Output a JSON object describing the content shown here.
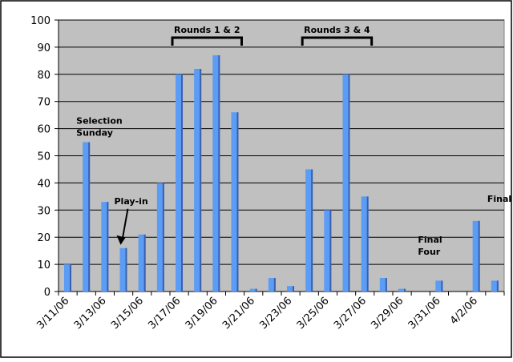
{
  "chart_data": {
    "type": "bar",
    "title": "",
    "xlabel": "",
    "ylabel": "",
    "ylim": [
      0,
      100
    ],
    "yticks": [
      0,
      10,
      20,
      30,
      40,
      50,
      60,
      70,
      80,
      90,
      100
    ],
    "grid": true,
    "legend": "none",
    "colors": {
      "bar": "#5b9cf5",
      "bar_shadow": "#3a5fb0",
      "plot_background": "#c0c0c0",
      "gridline": "#000000"
    },
    "categories": [
      "3/11/06",
      "3/12/06",
      "3/13/06",
      "3/14/06",
      "3/15/06",
      "3/16/06",
      "3/17/06",
      "3/18/06",
      "3/19/06",
      "3/20/06",
      "3/21/06",
      "3/22/06",
      "3/23/06",
      "3/24/06",
      "3/25/06",
      "3/26/06",
      "3/27/06",
      "3/28/06",
      "3/29/06",
      "3/30/06",
      "3/31/06",
      "4/1/06",
      "4/2/06",
      "4/3/06"
    ],
    "x_tick_labels": [
      "3/11/06",
      "3/13/06",
      "3/15/06",
      "3/17/06",
      "3/19/06",
      "3/21/06",
      "3/23/06",
      "3/25/06",
      "3/27/06",
      "3/29/06",
      "3/31/06",
      "4/2/06"
    ],
    "values": [
      10,
      55,
      33,
      16,
      21,
      40,
      80,
      82,
      87,
      66,
      1,
      5,
      2,
      45,
      30,
      80,
      35,
      5,
      1,
      0,
      4,
      0,
      26,
      4
    ],
    "annotations": [
      {
        "id": "selection-sunday",
        "lines": [
          "Selection",
          "Sunday"
        ],
        "category": "3/12/06"
      },
      {
        "id": "play-in",
        "lines": [
          "Play-in"
        ],
        "category": "3/14/06",
        "arrow": true
      },
      {
        "id": "rounds-1-2",
        "lines": [
          "Rounds 1 & 2"
        ],
        "bracket": [
          "3/17/06",
          "3/20/06"
        ]
      },
      {
        "id": "rounds-3-4",
        "lines": [
          "Rounds 3 & 4"
        ],
        "bracket": [
          "3/24/06",
          "3/27/06"
        ]
      },
      {
        "id": "final-four",
        "lines": [
          "Final",
          "Four"
        ],
        "category": "3/31/06"
      },
      {
        "id": "final",
        "lines": [
          "Final"
        ],
        "category": "4/3/06"
      }
    ]
  }
}
